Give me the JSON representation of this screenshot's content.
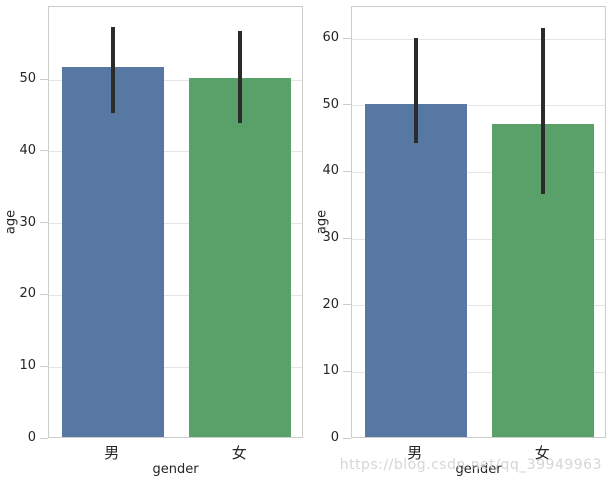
{
  "figure": {
    "background": "#ffffff"
  },
  "watermark": {
    "text": "https://blog.csdn.net/qq_39949963",
    "color": "#d6d6d6"
  },
  "style": {
    "grid_color": "#e5e5e5",
    "spine_color": "#cccccc",
    "text_color": "#262626",
    "error_bar_color": "#2b2b2b"
  },
  "chart_data": [
    {
      "type": "bar",
      "title": "",
      "xlabel": "gender",
      "ylabel": "age",
      "categories": [
        "男",
        "女"
      ],
      "values": [
        51.6,
        50.0
      ],
      "error_low": [
        45.4,
        44.1
      ],
      "error_high": [
        57.4,
        56.9
      ],
      "bar_colors": [
        "#5878a4",
        "#5aa169"
      ],
      "yticks": [
        0,
        10,
        20,
        30,
        40,
        50
      ],
      "ylim": [
        0,
        60.2
      ],
      "grid": true,
      "legend_position": "none"
    },
    {
      "type": "bar",
      "title": "",
      "xlabel": "gender",
      "ylabel": "age",
      "categories": [
        "男",
        "女"
      ],
      "values": [
        50.0,
        47.0
      ],
      "error_low": [
        44.4,
        36.8
      ],
      "error_high": [
        60.2,
        61.7
      ],
      "bar_colors": [
        "#5878a4",
        "#5aa169"
      ],
      "yticks": [
        0,
        10,
        20,
        30,
        40,
        50,
        60
      ],
      "ylim": [
        0,
        64.8
      ],
      "grid": true,
      "legend_position": "none"
    }
  ]
}
